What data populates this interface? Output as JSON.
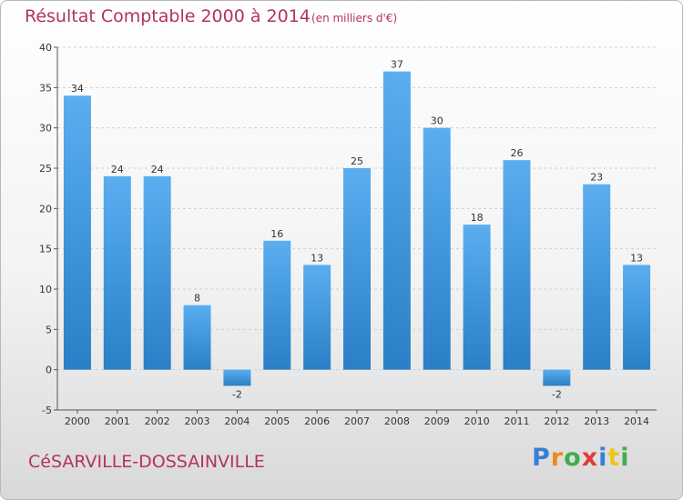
{
  "chart_data": {
    "type": "bar",
    "title": "Résultat Comptable 2000 à 2014",
    "subtitle": "(en milliers d'€)",
    "categories": [
      "2000",
      "2001",
      "2002",
      "2003",
      "2004",
      "2005",
      "2006",
      "2007",
      "2008",
      "2009",
      "2010",
      "2011",
      "2012",
      "2013",
      "2014"
    ],
    "values": [
      34,
      24,
      24,
      8,
      -2,
      16,
      13,
      25,
      37,
      30,
      18,
      26,
      -2,
      23,
      13
    ],
    "ylim": [
      -5,
      40
    ],
    "yticks": [
      -5,
      0,
      5,
      10,
      15,
      20,
      25,
      30,
      35,
      40
    ],
    "xlabel": "",
    "ylabel": "",
    "grid": true,
    "bar_color_light": "#5aaef0",
    "bar_color_dark": "#2a7fc6"
  },
  "footer": {
    "commune": "CéSARVILLE-DOSSAINVILLE",
    "logo_letters": [
      "P",
      "r",
      "o",
      "x",
      "i",
      "t",
      "i"
    ],
    "logo_colors": [
      "#3a7fd6",
      "#f08a1c",
      "#3fae49",
      "#e23a3a",
      "#3a7fd6",
      "#f0c419",
      "#3fae49"
    ]
  }
}
